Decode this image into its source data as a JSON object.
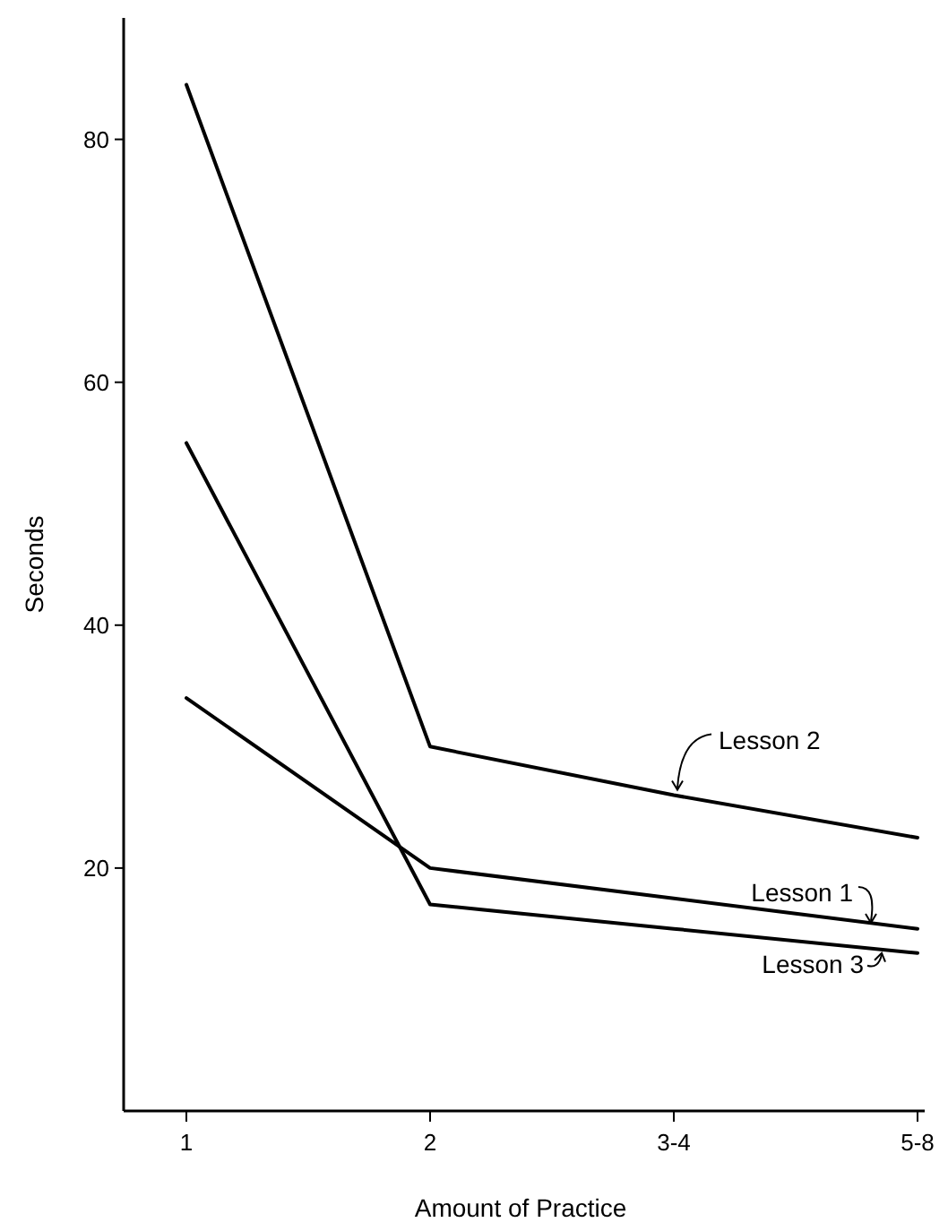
{
  "chart_data": {
    "type": "line",
    "xlabel": "Amount of Practice",
    "ylabel": "Seconds",
    "categories": [
      "1",
      "2",
      "3-4",
      "5-8"
    ],
    "ylim": [
      0,
      90
    ],
    "yticks": [
      20,
      40,
      60,
      80
    ],
    "grid": false,
    "marker": "none",
    "line_style": "solid",
    "series": [
      {
        "color": "#000000",
        "values": [
          34,
          20,
          17.5,
          15
        ]
      },
      {
        "color": "#000000",
        "values": [
          84.5,
          30,
          26,
          22.5
        ]
      },
      {
        "color": "#000000",
        "values": [
          55,
          17,
          15,
          13
        ]
      }
    ],
    "annotations": [
      {
        "text": "Lesson 2",
        "x": "3-4",
        "y": 26
      },
      {
        "text": "Lesson 1",
        "x": "5-8",
        "y": 15.2
      },
      {
        "text": "Lesson 3",
        "x": "5-8",
        "y": 13.3
      }
    ]
  }
}
